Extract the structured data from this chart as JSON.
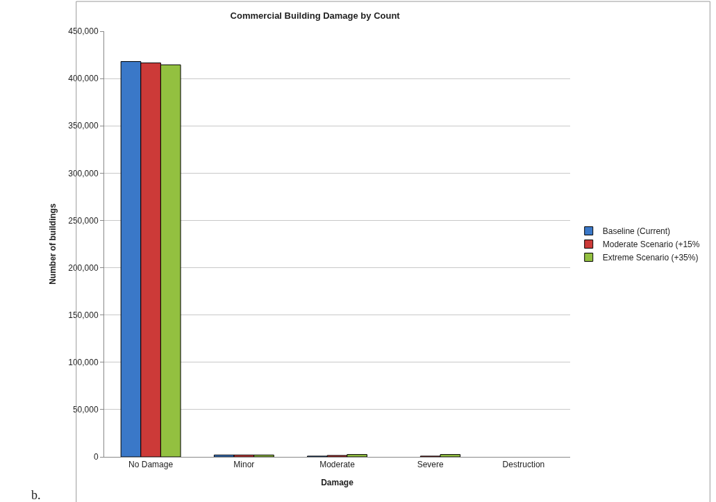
{
  "chart_data": {
    "type": "bar",
    "title": "Commercial Building Damage by Count",
    "xlabel": "Damage",
    "ylabel": "Number of buildings",
    "categories": [
      "No Damage",
      "Minor",
      "Moderate",
      "Severe",
      "Destruction"
    ],
    "series": [
      {
        "name": "Baseline (Current)",
        "color": "#3a78c8",
        "values": [
          418000,
          2000,
          800,
          null,
          null
        ]
      },
      {
        "name": "Moderate Scenario (+15%",
        "color": "#cc3a38",
        "values": [
          416500,
          2000,
          1500,
          800,
          null
        ]
      },
      {
        "name": "Extreme Scenario (+35%)",
        "color": "#93c040",
        "values": [
          414500,
          2000,
          2500,
          2500,
          null
        ]
      }
    ],
    "ylim": [
      0,
      450000
    ],
    "yticks": [
      {
        "value": 0,
        "label": "0"
      },
      {
        "value": 50000,
        "label": "50,000"
      },
      {
        "value": 100000,
        "label": "100,000"
      },
      {
        "value": 150000,
        "label": "150,000"
      },
      {
        "value": 200000,
        "label": "200,000"
      },
      {
        "value": 250000,
        "label": "250,000"
      },
      {
        "value": 300000,
        "label": "300,000"
      },
      {
        "value": 350000,
        "label": "350,000"
      },
      {
        "value": 400000,
        "label": "400,000"
      },
      {
        "value": 450000,
        "label": "450,000"
      }
    ],
    "grid": "y",
    "legend": "right",
    "annotations": [
      "b."
    ]
  }
}
